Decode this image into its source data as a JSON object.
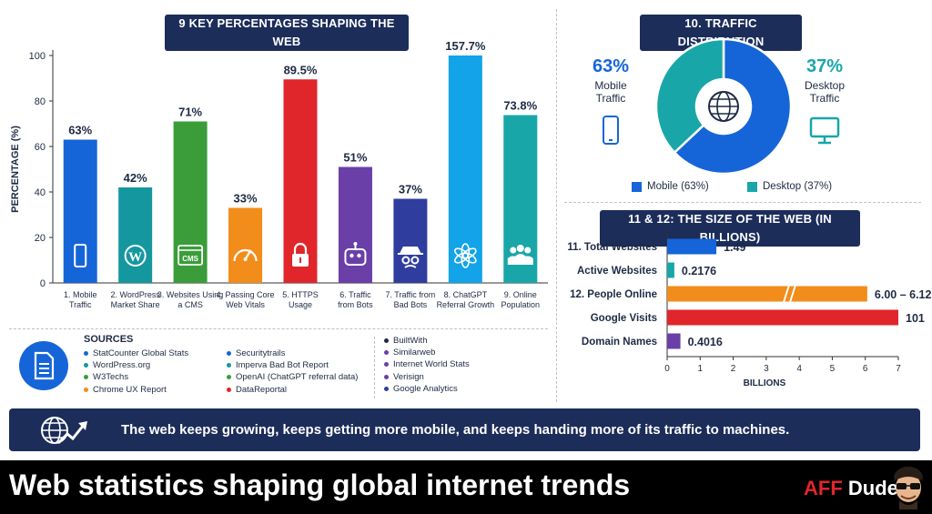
{
  "bar_panel": {
    "title": "9 KEY PERCENTAGES SHAPING THE WEB",
    "ylabel": "PERCENTAGE (%)"
  },
  "traffic_panel": {
    "title": "10. TRAFFIC DISTRIBUTION",
    "mobile_pct": "63%",
    "mobile_label_1": "Mobile",
    "mobile_label_2": "Traffic",
    "desktop_pct": "37%",
    "desktop_label_1": "Desktop",
    "desktop_label_2": "Traffic",
    "legend_mobile": "Mobile (63%)",
    "legend_desktop": "Desktop (37%)"
  },
  "size_panel": {
    "title": "11 & 12: THE SIZE OF THE WEB (IN BILLIONS)",
    "xlabel": "BILLIONS"
  },
  "chart_data": [
    {
      "type": "bar",
      "title": "9 KEY PERCENTAGES SHAPING THE WEB",
      "ylabel": "PERCENTAGE (%)",
      "ylim": [
        0,
        100
      ],
      "yticks": [
        0,
        20,
        40,
        60,
        80,
        100
      ],
      "grid": false,
      "categories": [
        [
          "1. Mobile",
          "Traffic"
        ],
        [
          "2. WordPress",
          "Market Share"
        ],
        [
          "3. Websites Using",
          "a CMS"
        ],
        [
          "4. Passing Core",
          "Web Vitals"
        ],
        [
          "5. HTTPS",
          "Usage"
        ],
        [
          "6. Traffic",
          "from Bots"
        ],
        [
          "7. Traffic from",
          "Bad Bots"
        ],
        [
          "8. ChatGPT",
          "Referral Growth"
        ],
        [
          "9. Online",
          "Population"
        ]
      ],
      "values": [
        63,
        42,
        71,
        33,
        89.5,
        51,
        37,
        157.7,
        73.8
      ],
      "data_labels": [
        "63%",
        "42%",
        "71%",
        "33%",
        "89.5%",
        "51%",
        "37%",
        "157.7%",
        "73.8%"
      ],
      "colors": [
        "#1565d8",
        "#1597a0",
        "#3a9d3a",
        "#f28c1a",
        "#e0262a",
        "#6a3fa8",
        "#2f3e9e",
        "#12a3e8",
        "#19a6a8"
      ],
      "icons": [
        "phone-icon",
        "wordpress-icon",
        "cms-icon",
        "gauge-icon",
        "lock-icon",
        "robot-icon",
        "spy-icon",
        "chatgpt-icon",
        "people-icon"
      ],
      "icon_text": [
        "",
        "W",
        "CMS",
        "",
        "",
        "",
        "",
        "",
        ""
      ]
    },
    {
      "type": "pie",
      "title": "10. TRAFFIC DISTRIBUTION",
      "labels": [
        "Mobile",
        "Desktop"
      ],
      "values": [
        63,
        37
      ],
      "colors": [
        "#1565d8",
        "#19a6a8"
      ],
      "legend": "bottom"
    },
    {
      "type": "bar",
      "orientation": "horizontal",
      "title": "11 & 12: THE SIZE OF THE WEB (IN BILLIONS)",
      "xlabel": "BILLIONS",
      "xlim": [
        0,
        7
      ],
      "xticks": [
        0,
        1,
        2,
        3,
        4,
        5,
        6,
        7
      ],
      "categories": [
        "11. Total Websites",
        "Active Websites",
        "12. People Online",
        "Google Visits",
        "Domain Names"
      ],
      "values": [
        1.49,
        0.2176,
        6.06,
        101,
        0.4016
      ],
      "data_labels": [
        "1.49",
        "0.2176",
        "6.00 – 6.12",
        "101",
        "0.4016"
      ],
      "colors": [
        "#1565d8",
        "#19a6a8",
        "#f28c1a",
        "#e0262a",
        "#6a3fa8"
      ],
      "axis_break": [
        false,
        false,
        true,
        false,
        false
      ]
    }
  ],
  "sources": {
    "title": "SOURCES",
    "columns": [
      [
        {
          "text": "StatCounter Global Stats",
          "color": "#1565d8"
        },
        {
          "text": "WordPress.org",
          "color": "#1597a0"
        },
        {
          "text": "W3Techs",
          "color": "#3a9d3a"
        },
        {
          "text": "Chrome UX Report",
          "color": "#f28c1a"
        }
      ],
      [
        {
          "text": "Securitytrails",
          "color": "#1565d8"
        },
        {
          "text": "Imperva Bad Bot Report",
          "color": "#1597a0"
        },
        {
          "text": "OpenAI (ChatGPT referral data)",
          "color": "#3a9d3a"
        },
        {
          "text": "DataReportal",
          "color": "#e0262a"
        }
      ],
      [
        {
          "text": "BuiltWith",
          "color": "#1e2a44"
        },
        {
          "text": "Similarweb",
          "color": "#6a3fa8"
        },
        {
          "text": "Internet World Stats",
          "color": "#6a3fa8"
        },
        {
          "text": "Verisign",
          "color": "#6a3fa8"
        },
        {
          "text": "Google Analytics",
          "color": "#2f3e9e"
        }
      ]
    ]
  },
  "banner": {
    "text": "The web keeps growing, keeps getting more mobile, and keeps handing more of its traffic to machines."
  },
  "footer": {
    "title": "Web statistics shaping global internet trends",
    "brand_a": "AFF",
    "brand_b": "Dude"
  }
}
